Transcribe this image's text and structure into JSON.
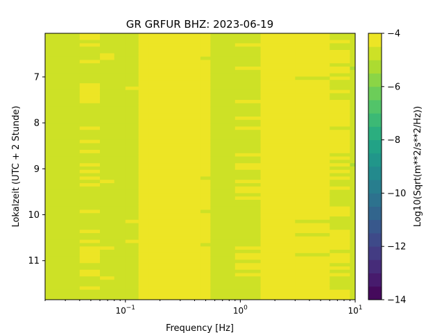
{
  "chart_data": {
    "type": "heatmap",
    "title": "GR GRFUR  BHZ: 2023-06-19",
    "xlabel": "Frequency [Hz]",
    "ylabel": "Lokalzeit (UTC + 2 Stunde)",
    "x_scale": "log",
    "xlim": [
      0.02,
      10
    ],
    "x_ticks": [
      {
        "value": 0.1,
        "label": "10^-1",
        "base": "10",
        "exp": "−1"
      },
      {
        "value": 1,
        "label": "10^0",
        "base": "10",
        "exp": "0"
      },
      {
        "value": 10,
        "label": "10^1",
        "base": "10",
        "exp": "1"
      }
    ],
    "ylim": [
      11.85,
      6.05
    ],
    "y_ticks": [
      7,
      8,
      9,
      10,
      11
    ],
    "y_inverted": true,
    "colorbar": {
      "label": "Log10(Sqrt(m**2/s**2/Hz))",
      "min": -14,
      "max": -4,
      "ticks": [
        -4,
        -6,
        -8,
        -10,
        -12,
        -14
      ],
      "tick_labels": [
        "−4",
        "−6",
        "−8",
        "−10",
        "−12",
        "−14"
      ],
      "colormap": "viridis",
      "levels": 20
    },
    "z_range_observed": [
      -5.2,
      -4.0
    ],
    "bands": [
      {
        "f_start": 0.02,
        "f_end": 0.04,
        "value": -4.85
      },
      {
        "f_start": 0.04,
        "f_end": 0.06,
        "value": -4.55
      },
      {
        "f_start": 0.06,
        "f_end": 0.08,
        "value": -4.6
      },
      {
        "f_start": 0.08,
        "f_end": 0.1,
        "value": -4.75
      },
      {
        "f_start": 0.1,
        "f_end": 0.13,
        "value": -4.6
      },
      {
        "f_start": 0.13,
        "f_end": 0.16,
        "value": -4.3
      },
      {
        "f_start": 0.16,
        "f_end": 0.32,
        "value": -4.05
      },
      {
        "f_start": 0.32,
        "f_end": 0.45,
        "value": -4.15
      },
      {
        "f_start": 0.45,
        "f_end": 0.55,
        "value": -4.4
      },
      {
        "f_start": 0.55,
        "f_end": 0.9,
        "value": -4.7
      },
      {
        "f_start": 0.9,
        "f_end": 1.5,
        "value": -4.55
      },
      {
        "f_start": 1.5,
        "f_end": 3,
        "value": -4.35
      },
      {
        "f_start": 3,
        "f_end": 6,
        "value": -4.4
      },
      {
        "f_start": 6,
        "f_end": 9,
        "value": -4.5
      },
      {
        "f_start": 9,
        "f_end": 10,
        "value": -4.9
      }
    ]
  }
}
